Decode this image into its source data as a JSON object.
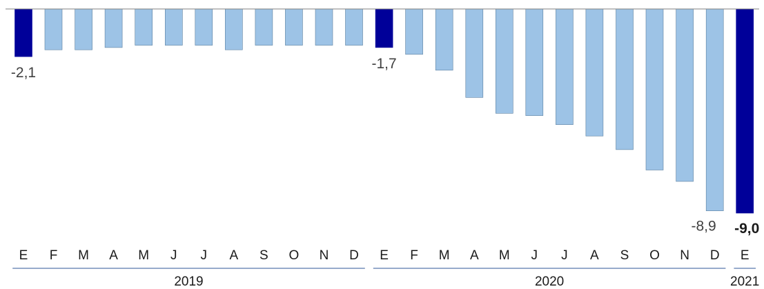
{
  "chart_data": {
    "type": "bar",
    "categories": [
      "E",
      "F",
      "M",
      "A",
      "M",
      "J",
      "J",
      "A",
      "S",
      "O",
      "N",
      "D",
      "E",
      "F",
      "M",
      "A",
      "M",
      "J",
      "J",
      "A",
      "S",
      "O",
      "N",
      "D",
      "E"
    ],
    "years": [
      {
        "label": "2019",
        "start": 0,
        "end": 11
      },
      {
        "label": "2020",
        "start": 12,
        "end": 23
      },
      {
        "label": "2021",
        "start": 24,
        "end": 24
      }
    ],
    "values": [
      -2.1,
      -1.8,
      -1.8,
      -1.7,
      -1.6,
      -1.6,
      -1.6,
      -1.8,
      -1.6,
      -1.6,
      -1.6,
      -1.6,
      -1.7,
      -2.0,
      -2.7,
      -3.9,
      -4.6,
      -4.7,
      -5.1,
      -5.6,
      -6.2,
      -7.1,
      -7.6,
      -8.9,
      -9.0
    ],
    "highlight_indices": [
      0,
      12,
      24
    ],
    "data_labels": [
      {
        "index": 0,
        "text": "-2,1",
        "bold": false
      },
      {
        "index": 12,
        "text": "-1,7",
        "bold": false
      },
      {
        "index": 23,
        "text": "-8,9",
        "bold": false
      },
      {
        "index": 24,
        "text": "-9,0",
        "bold": true
      }
    ],
    "ylim": [
      -9.0,
      0
    ],
    "colors": {
      "bar": "#9dc3e6",
      "bar_highlight": "#000099",
      "bar_edge": "#5a7f9f",
      "axis_line": "#808080",
      "year_line": "#2e5597"
    },
    "grid": false,
    "legend": "none"
  }
}
